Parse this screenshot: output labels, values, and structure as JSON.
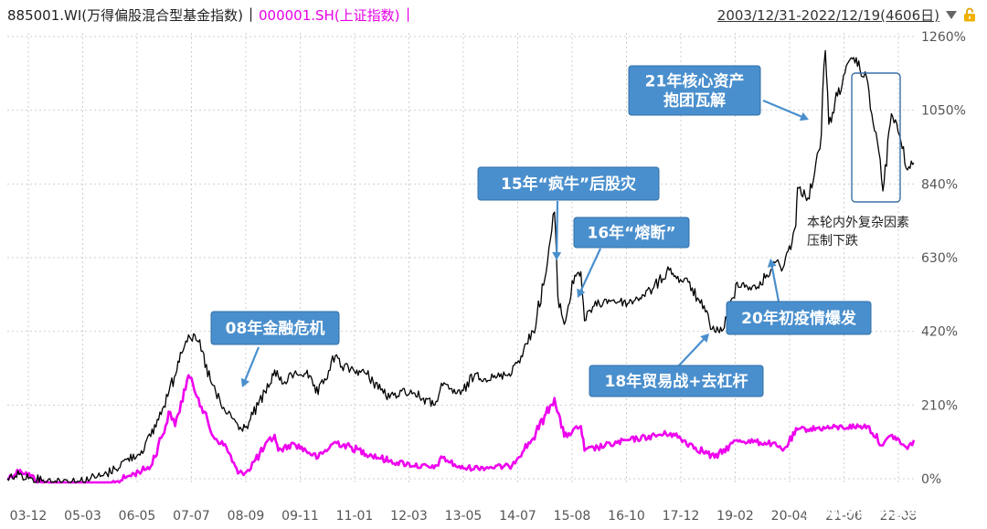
{
  "header": {
    "series1_label": "885001.WI(万得偏股混合型基金指数)",
    "separator": "|",
    "series2_label": "000001.SH(上证指数)",
    "separator2": "|",
    "date_range": "2003/12/31-2022/12/19(4606日)"
  },
  "colors": {
    "series1": "#000000",
    "series2": "#ee00ee",
    "callout": "#4a8fcd",
    "grid": "#cfcfcf"
  },
  "annotations": [
    {
      "id": "gfc",
      "lines": [
        "08年金融危机"
      ]
    },
    {
      "id": "crash15",
      "lines": [
        "15年“疯牛”后股灾"
      ]
    },
    {
      "id": "circuit16",
      "lines": [
        "16年“熔断”"
      ]
    },
    {
      "id": "trade18",
      "lines": [
        "18年贸易战+去杠杆"
      ]
    },
    {
      "id": "covid20",
      "lines": [
        "20年初疫情爆发"
      ]
    },
    {
      "id": "core21",
      "lines": [
        "21年核心资产",
        "抱团瓦解"
      ]
    }
  ],
  "note": {
    "lines": [
      "本轮内外复杂因素",
      "压制下跌"
    ]
  },
  "watermark": "搜狐号@华夏基金",
  "chart_data": {
    "type": "line",
    "title": "",
    "xlabel": "",
    "ylabel": "",
    "x_ticks": [
      "03-12",
      "05-03",
      "06-05",
      "07-07",
      "08-09",
      "09-11",
      "11-01",
      "12-03",
      "13-05",
      "14-07",
      "15-08",
      "16-10",
      "17-12",
      "19-02",
      "20-04",
      "21-06",
      "22-08"
    ],
    "y_ticks": [
      "0%",
      "210%",
      "420%",
      "630%",
      "840%",
      "1050%",
      "1260%"
    ],
    "ylim": [
      -30,
      1300
    ],
    "y_unit": "%",
    "grid": true,
    "legend": "top-left",
    "series": [
      {
        "name": "885001.WI(万得偏股混合型基金指数)",
        "points": [
          [
            "2003-12-31",
            0
          ],
          [
            "2004-03-31",
            12
          ],
          [
            "2004-06-30",
            2
          ],
          [
            "2004-09-30",
            -3
          ],
          [
            "2004-12-31",
            -6
          ],
          [
            "2005-03-31",
            -4
          ],
          [
            "2005-06-30",
            -8
          ],
          [
            "2005-09-30",
            3
          ],
          [
            "2005-12-31",
            8
          ],
          [
            "2006-03-31",
            28
          ],
          [
            "2006-06-30",
            55
          ],
          [
            "2006-09-30",
            70
          ],
          [
            "2006-12-31",
            120
          ],
          [
            "2007-03-31",
            200
          ],
          [
            "2007-06-30",
            290
          ],
          [
            "2007-08-15",
            360
          ],
          [
            "2007-10-16",
            410
          ],
          [
            "2007-12-31",
            390
          ],
          [
            "2008-03-31",
            280
          ],
          [
            "2008-06-30",
            200
          ],
          [
            "2008-09-30",
            170
          ],
          [
            "2008-11-04",
            140
          ],
          [
            "2008-12-31",
            150
          ],
          [
            "2009-03-31",
            210
          ],
          [
            "2009-06-30",
            270
          ],
          [
            "2009-08-04",
            310
          ],
          [
            "2009-09-30",
            270
          ],
          [
            "2009-12-31",
            300
          ],
          [
            "2010-03-31",
            300
          ],
          [
            "2010-07-02",
            240
          ],
          [
            "2010-11-10",
            350
          ],
          [
            "2010-12-31",
            320
          ],
          [
            "2011-06-30",
            300
          ],
          [
            "2011-12-31",
            230
          ],
          [
            "2012-03-31",
            250
          ],
          [
            "2012-06-30",
            245
          ],
          [
            "2012-11-30",
            210
          ],
          [
            "2013-02-08",
            265
          ],
          [
            "2013-06-25",
            240
          ],
          [
            "2013-10-15",
            300
          ],
          [
            "2013-12-31",
            285
          ],
          [
            "2014-03-31",
            290
          ],
          [
            "2014-06-30",
            300
          ],
          [
            "2014-09-30",
            350
          ],
          [
            "2014-12-31",
            420
          ],
          [
            "2015-03-31",
            570
          ],
          [
            "2015-06-12",
            760
          ],
          [
            "2015-07-08",
            520
          ],
          [
            "2015-08-26",
            440
          ],
          [
            "2015-11-15",
            580
          ],
          [
            "2015-12-31",
            590
          ],
          [
            "2016-01-28",
            450
          ],
          [
            "2016-03-31",
            490
          ],
          [
            "2016-07-31",
            510
          ],
          [
            "2016-12-31",
            500
          ],
          [
            "2017-06-30",
            540
          ],
          [
            "2017-11-15",
            600
          ],
          [
            "2017-12-31",
            570
          ],
          [
            "2018-03-31",
            560
          ],
          [
            "2018-06-30",
            500
          ],
          [
            "2018-10-18",
            420
          ],
          [
            "2018-12-31",
            430
          ],
          [
            "2019-04-08",
            560
          ],
          [
            "2019-08-31",
            540
          ],
          [
            "2019-12-31",
            600
          ],
          [
            "2020-02-03",
            620
          ],
          [
            "2020-03-23",
            600
          ],
          [
            "2020-06-30",
            720
          ],
          [
            "2020-07-13",
            830
          ],
          [
            "2020-09-30",
            800
          ],
          [
            "2020-12-31",
            940
          ],
          [
            "2021-02-10",
            1220
          ],
          [
            "2021-03-09",
            1010
          ],
          [
            "2021-06-30",
            1150
          ],
          [
            "2021-09-15",
            1200
          ],
          [
            "2021-12-31",
            1130
          ],
          [
            "2022-01-31",
            1040
          ],
          [
            "2022-03-15",
            960
          ],
          [
            "2022-04-26",
            820
          ],
          [
            "2022-06-30",
            1040
          ],
          [
            "2022-08-31",
            980
          ],
          [
            "2022-10-31",
            880
          ],
          [
            "2022-12-19",
            900
          ]
        ]
      },
      {
        "name": "000001.SH(上证指数)",
        "points": [
          [
            "2003-12-31",
            0
          ],
          [
            "2004-04-07",
            25
          ],
          [
            "2004-09-13",
            -10
          ],
          [
            "2004-12-31",
            -15
          ],
          [
            "2005-06-06",
            -35
          ],
          [
            "2005-12-31",
            -25
          ],
          [
            "2006-06-30",
            5
          ],
          [
            "2006-12-31",
            35
          ],
          [
            "2007-05-29",
            190
          ],
          [
            "2007-07-05",
            150
          ],
          [
            "2007-10-16",
            295
          ],
          [
            "2007-12-31",
            230
          ],
          [
            "2008-04-22",
            120
          ],
          [
            "2008-07-31",
            90
          ],
          [
            "2008-10-28",
            15
          ],
          [
            "2008-12-31",
            20
          ],
          [
            "2009-08-04",
            125
          ],
          [
            "2009-09-01",
            80
          ],
          [
            "2009-12-31",
            100
          ],
          [
            "2010-07-02",
            60
          ],
          [
            "2010-11-10",
            105
          ],
          [
            "2011-12-31",
            50
          ],
          [
            "2012-12-03",
            30
          ],
          [
            "2013-02-08",
            60
          ],
          [
            "2013-06-25",
            30
          ],
          [
            "2014-06-30",
            35
          ],
          [
            "2014-12-31",
            115
          ],
          [
            "2015-06-12",
            230
          ],
          [
            "2015-08-26",
            120
          ],
          [
            "2015-12-31",
            150
          ],
          [
            "2016-01-28",
            80
          ],
          [
            "2016-12-31",
            110
          ],
          [
            "2017-11-15",
            130
          ],
          [
            "2018-10-18",
            60
          ],
          [
            "2019-04-08",
            110
          ],
          [
            "2019-12-31",
            100
          ],
          [
            "2020-03-23",
            80
          ],
          [
            "2020-07-13",
            140
          ],
          [
            "2021-02-18",
            145
          ],
          [
            "2021-12-31",
            150
          ],
          [
            "2022-04-26",
            95
          ],
          [
            "2022-07-05",
            125
          ],
          [
            "2022-10-31",
            85
          ],
          [
            "2022-12-19",
            110
          ]
        ]
      }
    ]
  }
}
